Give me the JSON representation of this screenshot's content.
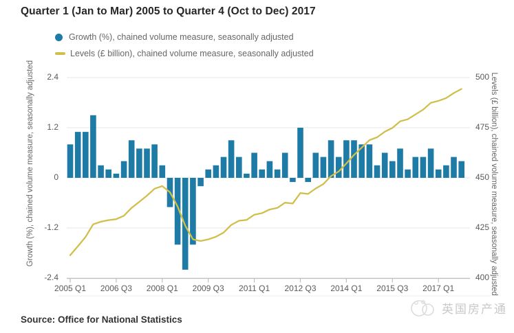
{
  "chart": {
    "title": "Quarter 1 (Jan to Mar) 2005 to Quarter 4 (Oct to Dec) 2017",
    "legend": {
      "growth": "Growth (%), chained volume measure, seasonally adjusted",
      "levels": "Levels (£ billion), chained volume measure, seasonally adjusted"
    },
    "left_axis_label": "Growth (%), chained volume measure, seasonally adjusted",
    "right_axis_label": "Levels (£ billion), chained volume measure, seasonally adjusted",
    "source": "Source: Office for National Statistics",
    "colors": {
      "bar": "#1e7ba6",
      "line": "#d1bf4c",
      "grid": "#e7e7e7",
      "axis_line": "#bfbfbf",
      "tick_text": "#595959",
      "label_text": "#666666",
      "title_text": "#262626",
      "watermark": "#c9c9c9"
    }
  },
  "watermark": {
    "text": "英国房产通"
  },
  "chart_data": {
    "type": "combo_bar_line",
    "title": "Quarter 1 (Jan to Mar) 2005 to Quarter 4 (Oct to Dec) 2017",
    "grid": "horizontal",
    "legend_position": "top-left",
    "categories": [
      "2005 Q1",
      "2005 Q2",
      "2005 Q3",
      "2005 Q4",
      "2006 Q1",
      "2006 Q2",
      "2006 Q3",
      "2006 Q4",
      "2007 Q1",
      "2007 Q2",
      "2007 Q3",
      "2007 Q4",
      "2008 Q1",
      "2008 Q2",
      "2008 Q3",
      "2008 Q4",
      "2009 Q1",
      "2009 Q2",
      "2009 Q3",
      "2009 Q4",
      "2010 Q1",
      "2010 Q2",
      "2010 Q3",
      "2010 Q4",
      "2011 Q1",
      "2011 Q2",
      "2011 Q3",
      "2011 Q4",
      "2012 Q1",
      "2012 Q2",
      "2012 Q3",
      "2012 Q4",
      "2013 Q1",
      "2013 Q2",
      "2013 Q3",
      "2013 Q4",
      "2014 Q1",
      "2014 Q2",
      "2014 Q3",
      "2014 Q4",
      "2015 Q1",
      "2015 Q2",
      "2015 Q3",
      "2015 Q4",
      "2016 Q1",
      "2016 Q2",
      "2016 Q3",
      "2016 Q4",
      "2017 Q1",
      "2017 Q2",
      "2017 Q3",
      "2017 Q4"
    ],
    "series": [
      {
        "name": "Growth (%), chained volume measure, seasonally adjusted",
        "type": "bar",
        "axis": "left",
        "values": [
          0.8,
          1.1,
          1.1,
          1.5,
          0.3,
          0.2,
          0.1,
          0.4,
          0.9,
          0.7,
          0.7,
          0.8,
          0.3,
          -0.7,
          -1.6,
          -2.2,
          -1.6,
          -0.2,
          0.2,
          0.3,
          0.5,
          0.9,
          0.5,
          0.1,
          0.6,
          0.2,
          0.4,
          0.2,
          0.6,
          -0.1,
          1.2,
          -0.1,
          0.6,
          0.5,
          0.9,
          0.5,
          0.9,
          0.9,
          0.8,
          0.8,
          0.3,
          0.6,
          0.4,
          0.7,
          0.2,
          0.5,
          0.5,
          0.7,
          0.2,
          0.3,
          0.5,
          0.4
        ]
      },
      {
        "name": "Levels (£ billion), chained volume measure, seasonally adjusted",
        "type": "line",
        "axis": "right",
        "values": [
          411.4,
          415.9,
          420.5,
          426.8,
          428.1,
          428.9,
          429.4,
          431.1,
          435.0,
          438.0,
          441.1,
          444.6,
          445.9,
          442.8,
          435.7,
          426.1,
          419.3,
          418.5,
          419.3,
          420.6,
          422.7,
          426.5,
          428.6,
          429.0,
          431.6,
          432.4,
          434.2,
          435.0,
          437.6,
          437.2,
          442.4,
          442.0,
          444.7,
          446.9,
          450.9,
          453.2,
          457.2,
          461.4,
          465.1,
          468.8,
          470.2,
          473.0,
          474.9,
          478.2,
          479.2,
          481.6,
          484.0,
          487.4,
          488.4,
          489.8,
          492.3,
          494.3
        ]
      }
    ],
    "left_axis": {
      "ticks": [
        "2.4",
        "1.2",
        "0",
        "-1.2",
        "-2.4"
      ],
      "range": [
        -2.4,
        2.4
      ]
    },
    "right_axis": {
      "ticks": [
        "500",
        "475",
        "450",
        "425",
        "400"
      ],
      "range": [
        400,
        500
      ]
    },
    "x_tick_labels": [
      "2005 Q1",
      "2006 Q3",
      "2008 Q1",
      "2009 Q3",
      "2011 Q1",
      "2012 Q3",
      "2014 Q1",
      "2015 Q3",
      "2017 Q1"
    ],
    "x_tick_indices": [
      0,
      6,
      12,
      18,
      24,
      30,
      36,
      42,
      48
    ]
  }
}
